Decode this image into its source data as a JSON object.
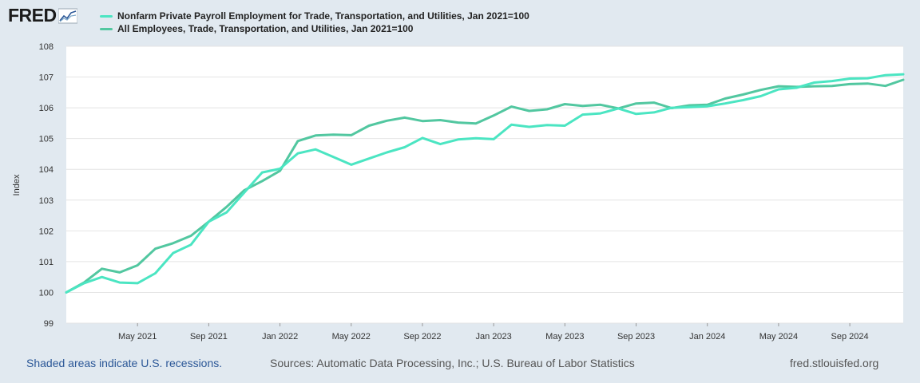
{
  "brand": {
    "logo_text": "FRED"
  },
  "footer": {
    "recession_note": "Shaded areas indicate U.S. recessions.",
    "sources": "Sources: Automatic Data Processing, Inc.; U.S. Bureau of Labor Statistics",
    "site": "fred.stlouisfed.org"
  },
  "colors": {
    "background": "#e1e9f0",
    "plot_bg": "#ffffff",
    "series1": "#4be5c2",
    "series2": "#52c7a0",
    "grid": "#e4e4e4"
  },
  "chart_data": {
    "type": "line",
    "title": "",
    "xlabel": "",
    "ylabel": "Index",
    "ylim": [
      99,
      108
    ],
    "yticks": [
      "99",
      "100",
      "101",
      "102",
      "103",
      "104",
      "105",
      "106",
      "107",
      "108"
    ],
    "xticks": [
      "May 2021",
      "Sep 2021",
      "Jan 2022",
      "May 2022",
      "Sep 2022",
      "Jan 2023",
      "May 2023",
      "Sep 2023",
      "Jan 2024",
      "May 2024",
      "Sep 2024"
    ],
    "xtick_index": [
      4,
      8,
      12,
      16,
      20,
      24,
      28,
      32,
      36,
      40,
      44
    ],
    "x_start": "Jan 2021",
    "n_points": 48,
    "grid": true,
    "series": [
      {
        "name": "Nonfarm Private Payroll Employment for Trade, Transportation, and Utilities, Jan 2021=100",
        "values": [
          100.0,
          100.3,
          100.5,
          100.32,
          100.3,
          100.62,
          101.28,
          101.55,
          102.3,
          102.6,
          103.25,
          103.9,
          104.02,
          104.52,
          104.65,
          104.4,
          104.15,
          104.35,
          104.55,
          104.72,
          105.02,
          104.82,
          104.97,
          105.01,
          104.98,
          105.45,
          105.38,
          105.44,
          105.42,
          105.78,
          105.82,
          105.98,
          105.8,
          105.85,
          106.0,
          106.02,
          106.05,
          106.14,
          106.25,
          106.38,
          106.6,
          106.65,
          106.82,
          106.87,
          106.95,
          106.96,
          107.06,
          107.09
        ]
      },
      {
        "name": "All Employees, Trade, Transportation, and Utilities, Jan 2021=100",
        "values": [
          100.0,
          100.32,
          100.77,
          100.65,
          100.88,
          101.42,
          101.6,
          101.84,
          102.3,
          102.78,
          103.32,
          103.62,
          103.95,
          104.92,
          105.1,
          105.13,
          105.11,
          105.42,
          105.58,
          105.68,
          105.57,
          105.6,
          105.52,
          105.49,
          105.75,
          106.04,
          105.9,
          105.95,
          106.12,
          106.06,
          106.1,
          105.98,
          106.14,
          106.17,
          105.99,
          106.08,
          106.1,
          106.3,
          106.43,
          106.58,
          106.7,
          106.68,
          106.7,
          106.71,
          106.77,
          106.79,
          106.71,
          106.91
        ]
      }
    ]
  }
}
